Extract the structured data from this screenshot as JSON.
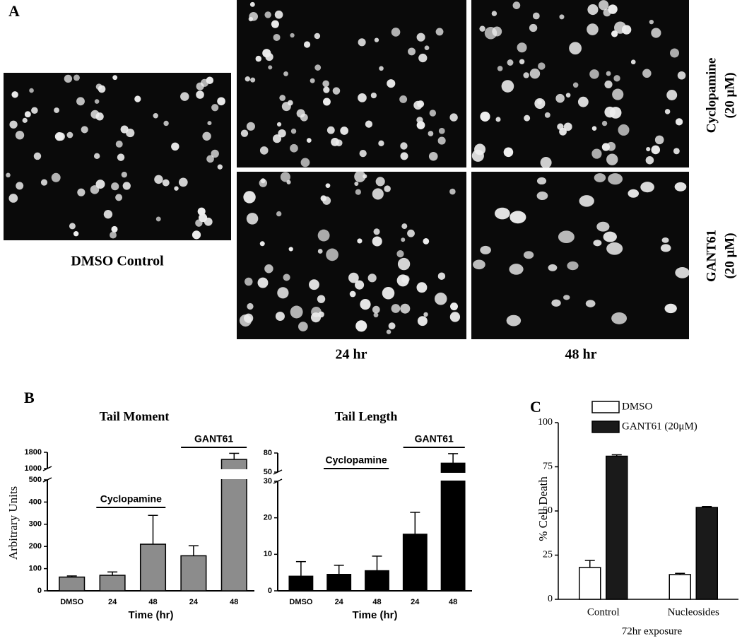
{
  "figure": {
    "panel_labels": [
      "A",
      "B",
      "C"
    ],
    "micrographs": {
      "control": "DMSO Control",
      "times": [
        "24 hr",
        "48 hr"
      ],
      "treatments": [
        [
          "Cyclopamine",
          "(20 μM)"
        ],
        [
          "GANT61",
          "(20 μM)"
        ]
      ]
    }
  },
  "chart_data": [
    {
      "type": "bar",
      "title": "Tail Moment",
      "xlabel": "Time (hr)",
      "ylabel": "Arbitrary Units",
      "categories": [
        "DMSO",
        "24",
        "48",
        "24",
        "48"
      ],
      "values": [
        62,
        70,
        210,
        158,
        1450
      ],
      "errors": [
        5,
        15,
        130,
        45,
        300
      ],
      "color": "#8c8c8c",
      "ylim": [
        0,
        1800
      ],
      "axis_break": [
        500,
        1000
      ],
      "yticks": [
        0,
        100,
        200,
        300,
        400,
        500,
        1000,
        1800
      ],
      "annotations": [
        "Cyclopamine",
        "GANT61"
      ]
    },
    {
      "type": "bar",
      "title": "Tail Length",
      "xlabel": "Time (hr)",
      "categories": [
        "DMSO",
        "24",
        "48",
        "24",
        "48"
      ],
      "values": [
        4,
        4.5,
        5.5,
        15.5,
        64
      ],
      "errors": [
        4,
        2.5,
        4,
        6,
        15
      ],
      "color": "#000000",
      "ylim": [
        0,
        80
      ],
      "axis_break": [
        30,
        50
      ],
      "yticks": [
        0,
        10,
        20,
        30,
        50,
        80
      ],
      "annotations": [
        "Cyclopamine",
        "GANT61"
      ]
    },
    {
      "type": "grouped-bar",
      "xlabel": "72hr exposure",
      "ylabel": "% Cell Death",
      "categories": [
        "Control",
        "Nucleosides"
      ],
      "series": [
        {
          "name": "DMSO",
          "color": "#ffffff",
          "values": [
            18,
            14
          ],
          "errors": [
            4,
            0.7
          ]
        },
        {
          "name": "GANT61 (20μM)",
          "color": "#1a1a1a",
          "values": [
            81,
            52
          ],
          "errors": [
            0.8,
            0.5
          ]
        }
      ],
      "ylim": [
        0,
        100
      ],
      "yticks": [
        0,
        25,
        50,
        75,
        100
      ]
    }
  ]
}
